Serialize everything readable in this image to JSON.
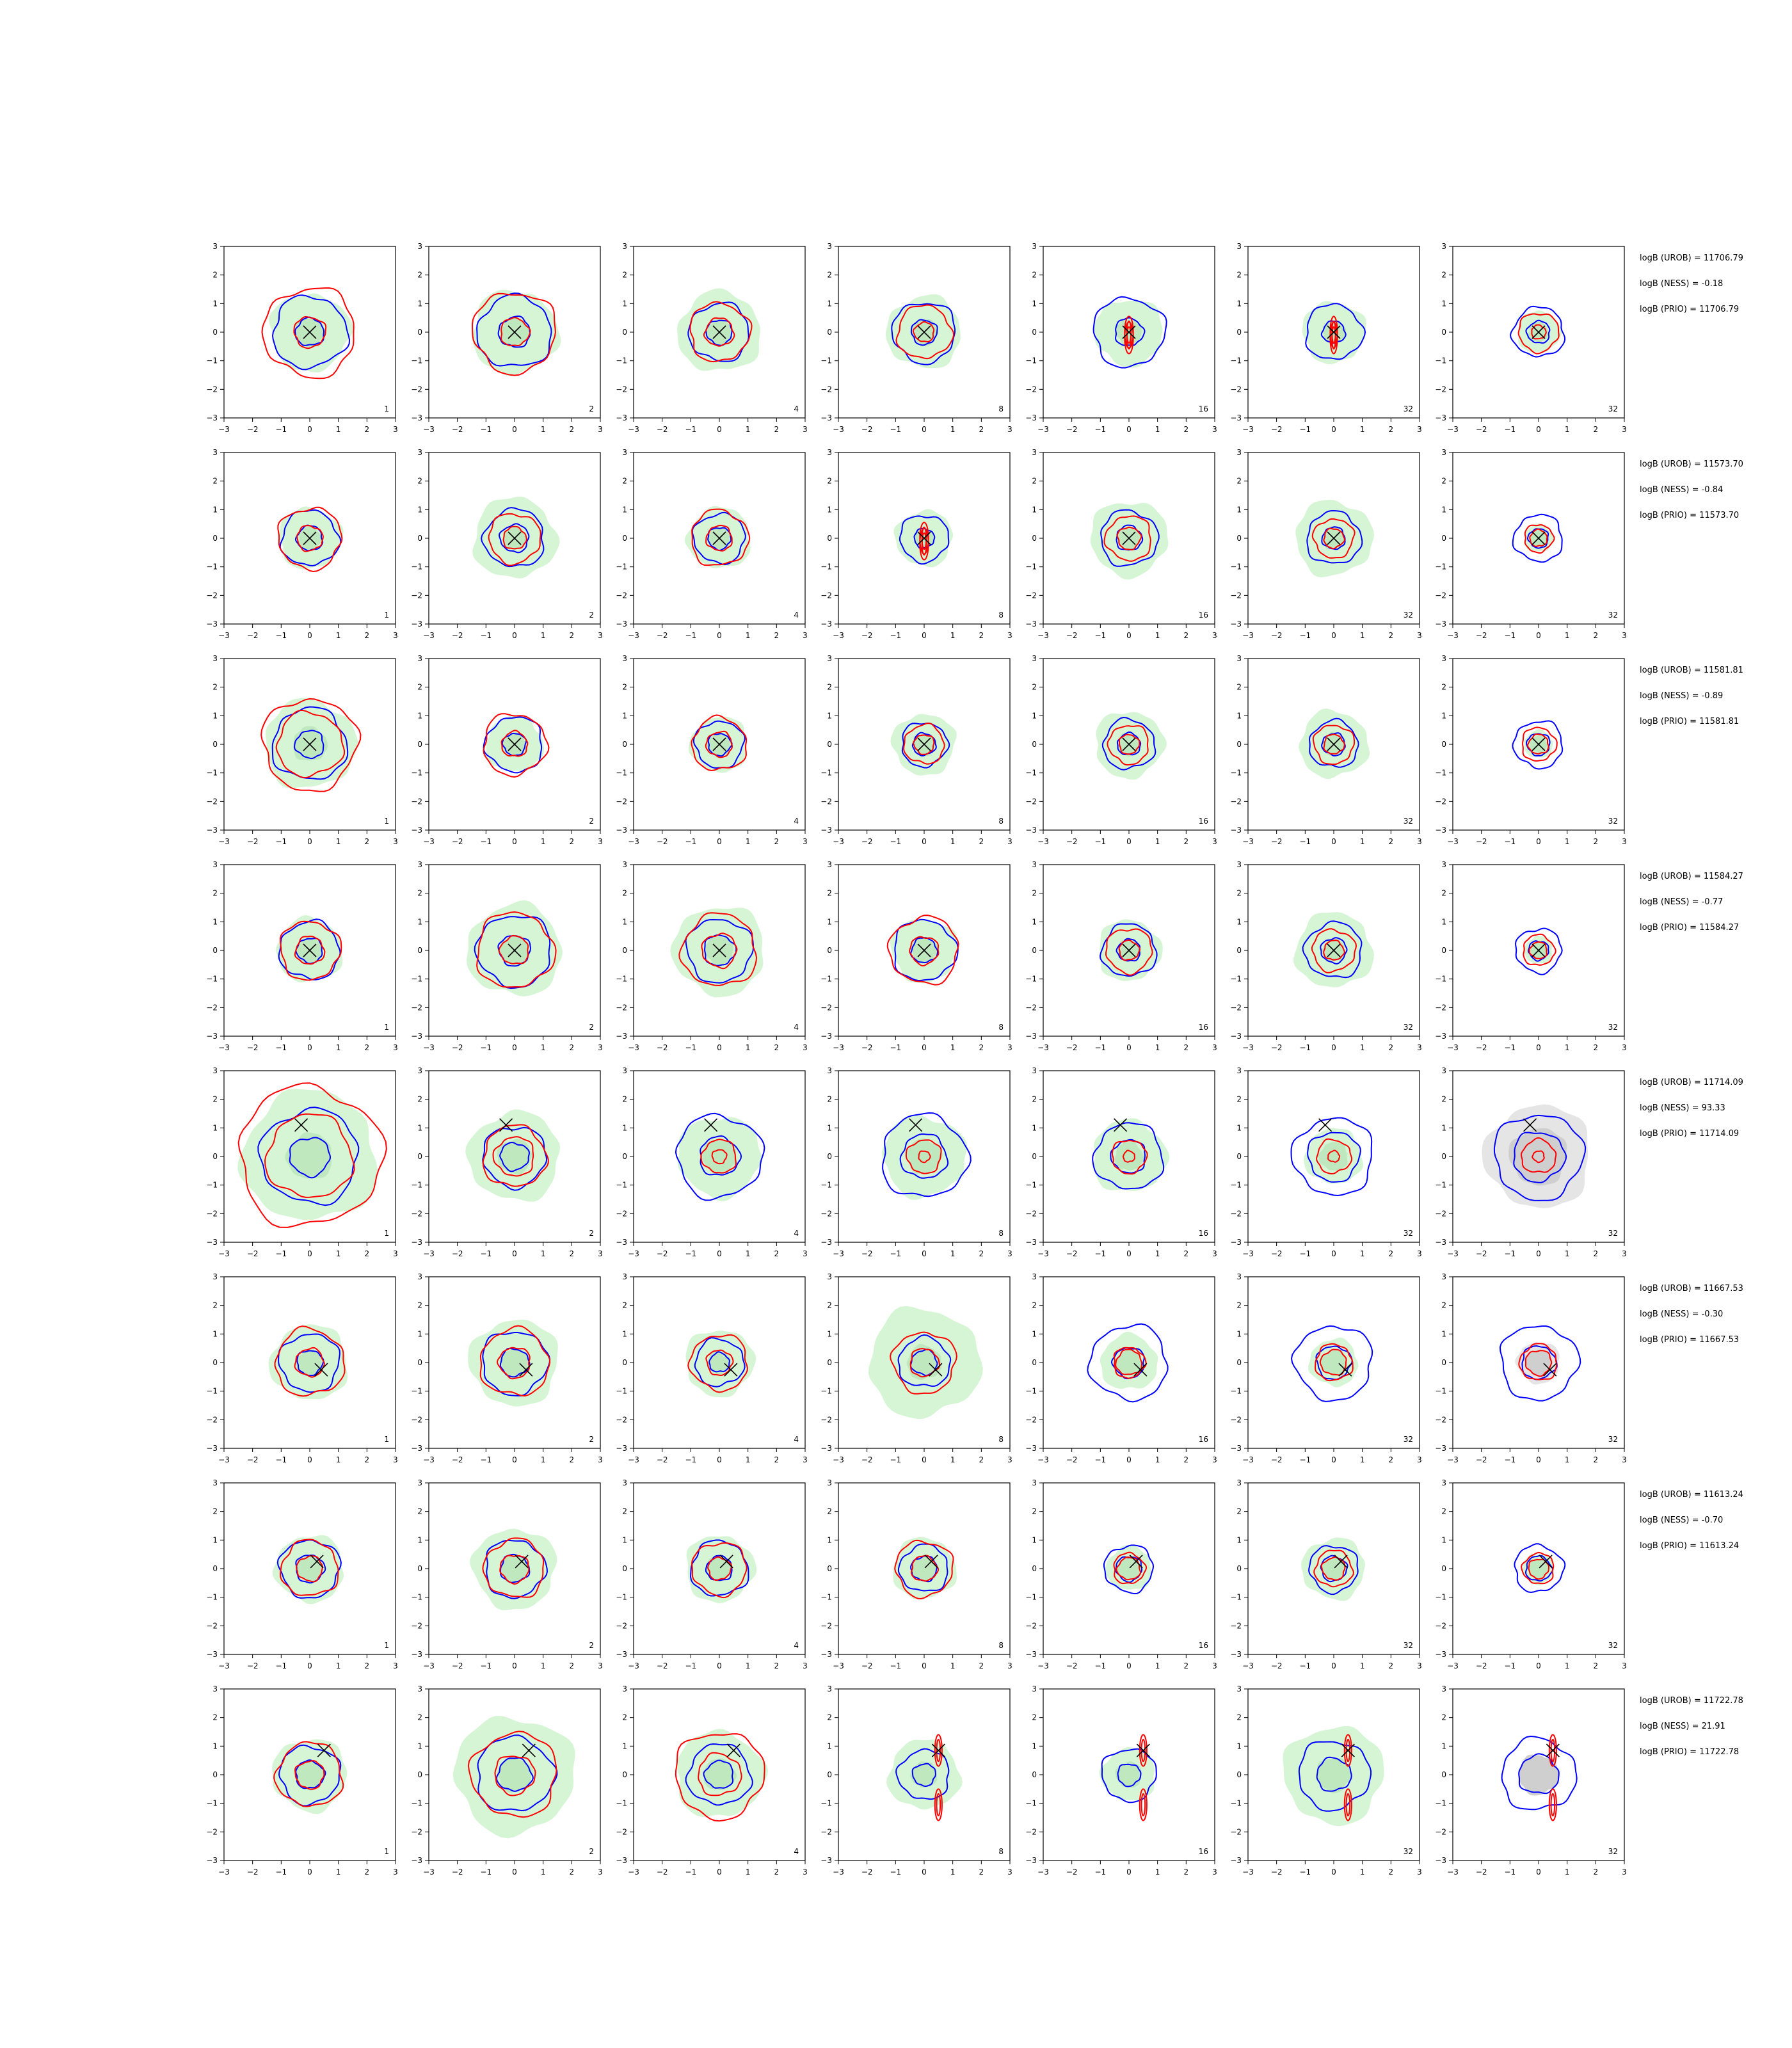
{
  "chart_data": {
    "type": "contour",
    "layout": {
      "rows": 8,
      "cols": 7
    },
    "axes": {
      "xlim": [
        -3,
        3
      ],
      "ylim": [
        -3,
        3
      ],
      "xticks": [
        -3,
        -2,
        -1,
        0,
        1,
        2,
        3
      ],
      "yticks": [
        -3,
        -2,
        -1,
        0,
        1,
        2,
        3
      ],
      "xtick_labels": [
        "−3",
        "−2",
        "−1",
        "0",
        "1",
        "2",
        "3"
      ],
      "ytick_labels": [
        "−3",
        "−2",
        "−1",
        "0",
        "1",
        "2",
        "3"
      ],
      "grid": false
    },
    "column_labels": [
      "1",
      "2",
      "4",
      "8",
      "16",
      "32",
      "32"
    ],
    "colors": {
      "blue_contour": "#0000ff",
      "red_contour": "#ff0000",
      "fill_green": "#d5f5d5",
      "fill_dark_green": "#bfe8bf",
      "fill_gray": "#e5e5e5",
      "fill_dark_gray": "#cfcfcf",
      "marker": "#000000"
    },
    "rows": [
      {
        "annotations": [
          "logB (UROB) = 11706.79",
          "logB (NESS) = -0.18",
          "logB (PRIO) = 11706.79"
        ],
        "marker": [
          0,
          0
        ],
        "panels": [
          {
            "blue": [
              1.3,
              0.5
            ],
            "red": [
              1.6,
              0.55
            ],
            "fill": 1.4,
            "mid": 0.5
          },
          {
            "blue": [
              1.3,
              0.55
            ],
            "red": [
              1.45,
              0.5
            ],
            "fill": 1.5,
            "mid": 0.5
          },
          {
            "blue": [
              1.05,
              0.45
            ],
            "red": [
              1.05,
              0.5
            ],
            "fill": 1.45,
            "mid": 0.45
          },
          {
            "blue": [
              1.1,
              0.45
            ],
            "red": [
              0.95,
              0.35
            ],
            "fill": 1.3,
            "mid": 0.45
          },
          {
            "blue": [
              1.25,
              0.5
            ],
            "red": [
              1.0,
              0.3
            ],
            "fill": 1.2,
            "mid": 0.45,
            "elong": 1
          },
          {
            "blue": [
              1.0,
              0.4
            ],
            "red": [
              0.9,
              0.25
            ],
            "fill": 1.1,
            "mid": 0.4,
            "elong": 1
          },
          {
            "blue": [
              0.9,
              0.4
            ],
            "red": [
              0.7,
              0.25
            ],
            "fill": 0.75,
            "mid": 0.35
          }
        ]
      },
      {
        "annotations": [
          "logB (UROB) = 11573.70",
          "logB (NESS) = -0.84",
          "logB (PRIO) = 11573.70"
        ],
        "marker": [
          0,
          0
        ],
        "panels": [
          {
            "blue": [
              1.0,
              0.45
            ],
            "red": [
              1.1,
              0.45
            ],
            "fill": 1.1,
            "mid": 0.4
          },
          {
            "blue": [
              1.05,
              0.5
            ],
            "red": [
              0.9,
              0.4
            ],
            "fill": 1.45,
            "mid": 0.4
          },
          {
            "blue": [
              0.9,
              0.4
            ],
            "red": [
              1.0,
              0.45
            ],
            "fill": 1.1,
            "mid": 0.4
          },
          {
            "blue": [
              0.85,
              0.35
            ],
            "red": [
              0.9,
              0.3
            ],
            "fill": 1.0,
            "mid": 0.35,
            "elong": 1
          },
          {
            "blue": [
              1.0,
              0.45
            ],
            "red": [
              0.8,
              0.4
            ],
            "fill": 1.35,
            "mid": 0.4
          },
          {
            "blue": [
              0.95,
              0.4
            ],
            "red": [
              0.7,
              0.35
            ],
            "fill": 1.35,
            "mid": 0.4
          },
          {
            "blue": [
              0.85,
              0.35
            ],
            "red": [
              0.5,
              0.3
            ],
            "fill": 0.5,
            "mid": 0.3
          }
        ]
      },
      {
        "annotations": [
          "logB (UROB) = 11581.81",
          "logB (NESS) = -0.89",
          "logB (PRIO) = 11581.81"
        ],
        "marker": [
          0,
          0
        ],
        "panels": [
          {
            "blue": [
              1.3,
              0.5
            ],
            "red": [
              1.65,
              1.15
            ],
            "fill": 1.6,
            "mid": 0.6
          },
          {
            "blue": [
              1.0,
              0.4
            ],
            "red": [
              1.1,
              0.45
            ],
            "fill": 1.0,
            "mid": 0.4
          },
          {
            "blue": [
              0.85,
              0.4
            ],
            "red": [
              0.95,
              0.45
            ],
            "fill": 1.0,
            "mid": 0.4
          },
          {
            "blue": [
              0.8,
              0.4
            ],
            "red": [
              0.7,
              0.35
            ],
            "fill": 1.1,
            "mid": 0.4
          },
          {
            "blue": [
              0.9,
              0.4
            ],
            "red": [
              0.7,
              0.35
            ],
            "fill": 1.2,
            "mid": 0.4
          },
          {
            "blue": [
              0.85,
              0.4
            ],
            "red": [
              0.7,
              0.35
            ],
            "fill": 1.2,
            "mid": 0.4
          },
          {
            "blue": [
              0.85,
              0.4
            ],
            "red": [
              0.6,
              0.35
            ],
            "fill": 0.5,
            "mid": 0.3
          }
        ]
      },
      {
        "annotations": [
          "logB (UROB) = 11584.27",
          "logB (NESS) = -0.77",
          "logB (PRIO) = 11584.27"
        ],
        "marker": [
          0,
          0
        ],
        "panels": [
          {
            "blue": [
              1.05,
              0.45
            ],
            "red": [
              1.05,
              0.5
            ],
            "fill": 1.15,
            "mid": 0.45
          },
          {
            "blue": [
              1.3,
              0.55
            ],
            "red": [
              1.35,
              0.5
            ],
            "fill": 1.65,
            "mid": 0.5
          },
          {
            "blue": [
              1.15,
              0.55
            ],
            "red": [
              1.3,
              0.6
            ],
            "fill": 1.6,
            "mid": 0.5
          },
          {
            "blue": [
              1.1,
              0.45
            ],
            "red": [
              1.2,
              0.5
            ],
            "fill": 1.15,
            "mid": 0.45
          },
          {
            "blue": [
              0.95,
              0.4
            ],
            "red": [
              0.8,
              0.35
            ],
            "fill": 1.1,
            "mid": 0.4
          },
          {
            "blue": [
              1.0,
              0.45
            ],
            "red": [
              0.75,
              0.35
            ],
            "fill": 1.35,
            "mid": 0.4
          },
          {
            "blue": [
              0.8,
              0.35
            ],
            "red": [
              0.55,
              0.3
            ],
            "fill": 0.5,
            "mid": 0.3
          }
        ]
      },
      {
        "annotations": [
          "logB (UROB) = 11714.09",
          "logB (NESS) = 93.33",
          "logB (PRIO) = 11714.09"
        ],
        "marker": [
          -0.3,
          1.1
        ],
        "panels": [
          {
            "blue": [
              1.7,
              0.7
            ],
            "red": [
              2.5,
              1.5
            ],
            "fill": 2.35,
            "mid": 0.8
          },
          {
            "blue": [
              1.1,
              0.5
            ],
            "red": [
              1.1,
              0.7
            ],
            "fill": 1.6,
            "mid": 0.6
          },
          {
            "blue": [
              1.5,
              0.7
            ],
            "red": [
              0.6,
              0.25
            ],
            "fill": 1.45,
            "mid": 0.6
          },
          {
            "blue": [
              1.5,
              0.8
            ],
            "red": [
              0.6,
              0.2
            ],
            "fill": 1.45,
            "mid": 0.6
          },
          {
            "blue": [
              1.2,
              0.6
            ],
            "red": [
              0.6,
              0.2
            ],
            "fill": 1.3,
            "mid": 0.5
          },
          {
            "blue": [
              1.4,
              0.9
            ],
            "red": [
              0.6,
              0.2
            ],
            "fill": 1.0,
            "mid": 0.5
          },
          {
            "blue": [
              1.55,
              0.9
            ],
            "red": [
              0.6,
              0.2
            ],
            "fill": 1.85,
            "mid": 1.0,
            "gray": 1
          }
        ]
      },
      {
        "annotations": [
          "logB (UROB) = 11667.53",
          "logB (NESS) = -0.30",
          "logB (PRIO) = 11667.53"
        ],
        "marker": [
          0.4,
          -0.25
        ],
        "panels": [
          {
            "blue": [
              1.05,
              0.45
            ],
            "red": [
              1.2,
              0.5
            ],
            "fill": 1.35,
            "mid": 0.45
          },
          {
            "blue": [
              1.15,
              0.5
            ],
            "red": [
              1.2,
              0.55
            ],
            "fill": 1.55,
            "mid": 0.5
          },
          {
            "blue": [
              0.85,
              0.35
            ],
            "red": [
              1.0,
              0.45
            ],
            "fill": 1.2,
            "mid": 0.4
          },
          {
            "blue": [
              0.9,
              0.45
            ],
            "red": [
              1.1,
              0.5
            ],
            "fill": 1.95,
            "mid": 0.6
          },
          {
            "blue": [
              1.35,
              0.55
            ],
            "red": [
              0.55,
              0.45
            ],
            "fill": 1.0,
            "mid": 0.45
          },
          {
            "blue": [
              1.35,
              0.6
            ],
            "red": [
              0.65,
              0.45
            ],
            "fill": 0.85,
            "mid": 0.45
          },
          {
            "blue": [
              1.35,
              0.6
            ],
            "red": [
              0.65,
              0.45
            ],
            "fill": 0.75,
            "mid": 0.45,
            "gray": 1
          }
        ]
      },
      {
        "annotations": [
          "logB (UROB) = 11613.24",
          "logB (NESS) = -0.70",
          "logB (PRIO) = 11613.24"
        ],
        "marker": [
          0.25,
          0.25
        ],
        "panels": [
          {
            "blue": [
              1.05,
              0.5
            ],
            "red": [
              1.0,
              0.45
            ],
            "fill": 1.2,
            "mid": 0.45
          },
          {
            "blue": [
              1.05,
              0.5
            ],
            "red": [
              1.05,
              0.5
            ],
            "fill": 1.45,
            "mid": 0.5
          },
          {
            "blue": [
              1.0,
              0.45
            ],
            "red": [
              0.95,
              0.4
            ],
            "fill": 1.2,
            "mid": 0.45
          },
          {
            "blue": [
              0.85,
              0.45
            ],
            "red": [
              1.0,
              0.45
            ],
            "fill": 1.1,
            "mid": 0.45
          },
          {
            "blue": [
              0.85,
              0.45
            ],
            "red": [
              0.55,
              0.4
            ],
            "fill": 0.8,
            "mid": 0.4
          },
          {
            "blue": [
              0.85,
              0.45
            ],
            "red": [
              0.65,
              0.4
            ],
            "fill": 1.1,
            "mid": 0.4
          },
          {
            "blue": [
              0.85,
              0.45
            ],
            "red": [
              0.55,
              0.35
            ],
            "fill": 0.55,
            "mid": 0.35
          }
        ]
      },
      {
        "annotations": [
          "logB (UROB) = 11722.78",
          "logB (NESS) = 21.91",
          "logB (PRIO) = 11722.78"
        ],
        "marker": [
          0.5,
          0.85
        ],
        "panels": [
          {
            "blue": [
              1.05,
              0.5
            ],
            "red": [
              1.15,
              0.5
            ],
            "fill": 1.3,
            "mid": 0.5
          },
          {
            "blue": [
              1.35,
              0.6
            ],
            "red": [
              1.5,
              0.7
            ],
            "fill": 2.1,
            "mid": 0.6
          },
          {
            "blue": [
              1.1,
              0.5
            ],
            "red": [
              1.55,
              0.75
            ],
            "fill": 1.55,
            "mid": 0.55
          },
          {
            "blue": [
              0.9,
              0.4
            ],
            "red": [
              1.4,
              0.25
            ],
            "fill": 1.25,
            "mid": 0.45,
            "elong": 1
          },
          {
            "blue": [
              0.95,
              0.4
            ],
            "red": [
              1.4,
              0.25
            ],
            "fill": 0.95,
            "mid": 0.45,
            "elong": 1
          },
          {
            "blue": [
              1.25,
              0.6
            ],
            "red": [
              1.4,
              0.25
            ],
            "fill": 1.75,
            "mid": 0.6,
            "elong": 1
          },
          {
            "blue": [
              1.3,
              0.7
            ],
            "red": [
              1.4,
              0.25
            ],
            "fill": 0.7,
            "mid": 0.7,
            "gray": 1,
            "elong": 1
          }
        ]
      }
    ]
  }
}
